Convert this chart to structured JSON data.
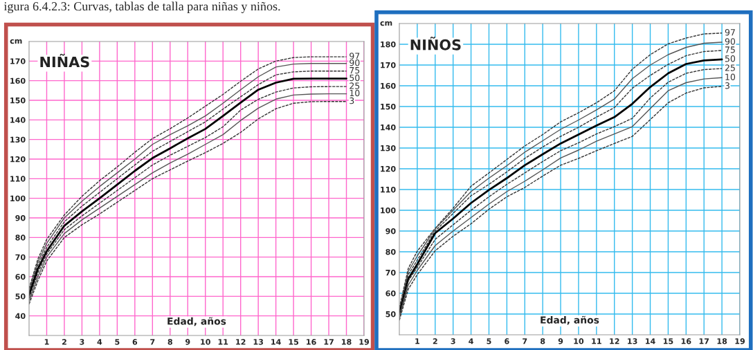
{
  "chart_data": [
    {
      "type": "line",
      "title": "NIÑAS",
      "xlabel": "Edad, años",
      "ylabel": "cm",
      "annotations": [
        "igura 6.4.2.3: Curvas, tablas de talla para niñas y niños."
      ],
      "x": [
        0,
        0.5,
        1,
        2,
        3,
        4,
        5,
        6,
        7,
        8,
        9,
        10,
        11,
        12,
        13,
        14,
        15,
        16,
        17,
        18
      ],
      "xlim": [
        0,
        19
      ],
      "xticks": [
        1,
        2,
        3,
        4,
        5,
        6,
        7,
        8,
        9,
        10,
        11,
        12,
        13,
        14,
        15,
        16,
        17,
        18,
        19
      ],
      "ylim": [
        30,
        180
      ],
      "yticks": [
        40,
        50,
        60,
        70,
        80,
        90,
        100,
        110,
        120,
        130,
        140,
        150,
        160,
        170
      ],
      "grid": true,
      "legend": false,
      "series": [
        {
          "name": "97",
          "color": "#333333",
          "line_style": "dashed",
          "values": [
            54,
            69,
            79,
            91.5,
            101,
            109,
            116,
            123.5,
            130.5,
            135.5,
            141,
            147,
            153,
            159.7,
            166,
            170,
            171.8,
            172.2,
            172.2,
            172.2
          ]
        },
        {
          "name": "90",
          "color": "#555555",
          "line_style": "solid",
          "values": [
            53,
            67.5,
            77,
            90,
            98.5,
            106,
            113,
            120,
            127.5,
            132.5,
            137,
            142,
            148.5,
            155.4,
            162,
            167,
            168.5,
            168.8,
            168.8,
            168.8
          ]
        },
        {
          "name": "75",
          "color": "#333333",
          "line_style": "dashed",
          "values": [
            52,
            66,
            75,
            88,
            96,
            103,
            110,
            117,
            124,
            129,
            134,
            139,
            145.5,
            151.8,
            158,
            163,
            164.5,
            164.9,
            164.9,
            164.9
          ]
        },
        {
          "name": "50",
          "color": "#000000",
          "line_style": "solid",
          "values": [
            50.5,
            64,
            73,
            86,
            93.3,
            100,
            107,
            114,
            120.5,
            125.5,
            130.6,
            135.4,
            142,
            148.8,
            155.4,
            159,
            161,
            161.1,
            161.1,
            161.1
          ]
        },
        {
          "name": "25",
          "color": "#333333",
          "line_style": "dashed",
          "values": [
            49,
            62,
            71.5,
            84,
            91,
            97.5,
            104,
            110.5,
            117,
            122,
            126.5,
            131,
            136.5,
            145,
            150.5,
            154.2,
            156.3,
            156.9,
            157,
            157
          ]
        },
        {
          "name": "10",
          "color": "#555555",
          "line_style": "solid",
          "values": [
            47.5,
            60,
            70,
            82,
            89,
            95,
            101,
            107,
            113,
            118,
            122.5,
            127.5,
            132.5,
            139.7,
            146,
            150.6,
            152.7,
            153.2,
            153.3,
            153.3
          ]
        },
        {
          "name": "3",
          "color": "#333333",
          "line_style": "dashed",
          "values": [
            46,
            58,
            68,
            80,
            86.5,
            92,
            98,
            104,
            110,
            114.5,
            119,
            123.3,
            128,
            133.6,
            140.5,
            145.7,
            148.5,
            149.3,
            149.4,
            149.4
          ]
        }
      ]
    },
    {
      "type": "line",
      "title": "NIÑOS",
      "xlabel": "Edad, años",
      "ylabel": "cm",
      "x": [
        0,
        0.5,
        1,
        2,
        3,
        4,
        5,
        6,
        7,
        8,
        9,
        10,
        11,
        12,
        13,
        14,
        15,
        16,
        17,
        18
      ],
      "xlim": [
        0,
        19
      ],
      "xticks": [
        1,
        2,
        3,
        4,
        5,
        6,
        7,
        8,
        9,
        10,
        11,
        12,
        13,
        14,
        15,
        16,
        17,
        18,
        19
      ],
      "ylim": [
        40,
        190
      ],
      "yticks": [
        50,
        60,
        70,
        80,
        90,
        100,
        110,
        120,
        130,
        140,
        150,
        160,
        170,
        180
      ],
      "grid": true,
      "legend": false,
      "series": [
        {
          "name": "97",
          "color": "#333333",
          "line_style": "dashed",
          "values": [
            53,
            72,
            80.3,
            91.3,
            101,
            111.6,
            118,
            124.5,
            131,
            136.5,
            142.6,
            147,
            151.8,
            157.6,
            168,
            175,
            180.2,
            183,
            185,
            185.4
          ]
        },
        {
          "name": "90",
          "color": "#555555",
          "line_style": "solid",
          "values": [
            52,
            70.5,
            78,
            91,
            100,
            109,
            115.5,
            121.5,
            128,
            133.5,
            139,
            143.5,
            148.4,
            153.6,
            163.4,
            170,
            175,
            178.5,
            180.5,
            181
          ]
        },
        {
          "name": "75",
          "color": "#333333",
          "line_style": "dashed",
          "values": [
            51,
            69,
            76,
            90,
            98.5,
            107,
            112.5,
            118.5,
            125,
            130.5,
            135.6,
            140,
            144.9,
            149.5,
            158.8,
            165,
            170.3,
            174.5,
            176.5,
            177
          ]
        },
        {
          "name": "50",
          "color": "#000000",
          "line_style": "solid",
          "values": [
            50,
            67,
            74,
            89,
            96,
            103.5,
            109.8,
            115.5,
            121.7,
            127,
            132.2,
            136.5,
            140.8,
            144.9,
            151.3,
            159.4,
            166,
            170.5,
            172.2,
            172.7
          ]
        },
        {
          "name": "25",
          "color": "#333333",
          "line_style": "dashed",
          "values": [
            49.5,
            66,
            72.5,
            86,
            93,
            100,
            106.5,
            112.5,
            118,
            123.5,
            128.7,
            132.5,
            136.8,
            140.3,
            144.3,
            154.1,
            161.7,
            166,
            167.8,
            168.3
          ]
        },
        {
          "name": "10",
          "color": "#555555",
          "line_style": "solid",
          "values": [
            48,
            64,
            71,
            83,
            90,
            96.5,
            103,
            109,
            114,
            119.5,
            125.2,
            129,
            133.3,
            136.8,
            140.3,
            149,
            157.6,
            161.5,
            163.3,
            163.9
          ]
        },
        {
          "name": "3",
          "color": "#333333",
          "line_style": "dashed",
          "values": [
            47,
            62,
            69,
            80.5,
            87.5,
            93.5,
            100.5,
            106.5,
            111,
            116.5,
            121.7,
            125,
            128.7,
            132.2,
            135.6,
            143.7,
            151.8,
            156.5,
            159,
            159.7
          ]
        }
      ]
    }
  ]
}
